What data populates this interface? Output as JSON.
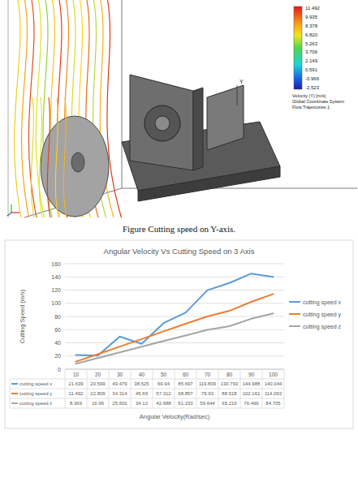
{
  "figure": {
    "colorbar": {
      "labels": [
        "11.492",
        "9.935",
        "8.378",
        "6.820",
        "5.263",
        "3.706",
        "2.149",
        "0.591",
        "-0.966",
        "-2.523"
      ],
      "title": "Velocity (Y) [m/s]",
      "notes": [
        "Global Coordinate System",
        "Flow Trajectories 1"
      ]
    },
    "axis_label": "Y",
    "caption": "Figure Cutting speed on Y-axis."
  },
  "chart_data": {
    "type": "line",
    "title": "Angular Velocity Vs Cutting Speed on 3 Axis",
    "x_label": "Angular Velocity(Rad/sec)",
    "y_label": "Cutting Speed (m/s)",
    "categories": [
      "10",
      "20",
      "30",
      "40",
      "50",
      "60",
      "70",
      "80",
      "90",
      "100"
    ],
    "series": [
      {
        "name": "cutting speed x",
        "color": "#5b9bd5",
        "values": [
          21.639,
          20.599,
          49.479,
          38.525,
          69.94,
          85.697,
          119.809,
          130.793,
          144.988,
          140.044
        ]
      },
      {
        "name": "cutting speed y",
        "color": "#ed7d31",
        "values": [
          11.492,
          22.809,
          34.314,
          45.69,
          57.312,
          68.857,
          79.93,
          88.518,
          102.161,
          114.063
        ]
      },
      {
        "name": "cutting speed z",
        "color": "#a5a5a5",
        "values": [
          8.369,
          16.96,
          25.602,
          34.12,
          42.688,
          51.153,
          59.644,
          65.219,
          76.499,
          84.705
        ]
      }
    ],
    "ylim": [
      0,
      160
    ],
    "yticks": [
      0,
      20,
      40,
      60,
      80,
      100,
      120,
      140,
      160
    ],
    "grid": true,
    "legend": "right"
  }
}
